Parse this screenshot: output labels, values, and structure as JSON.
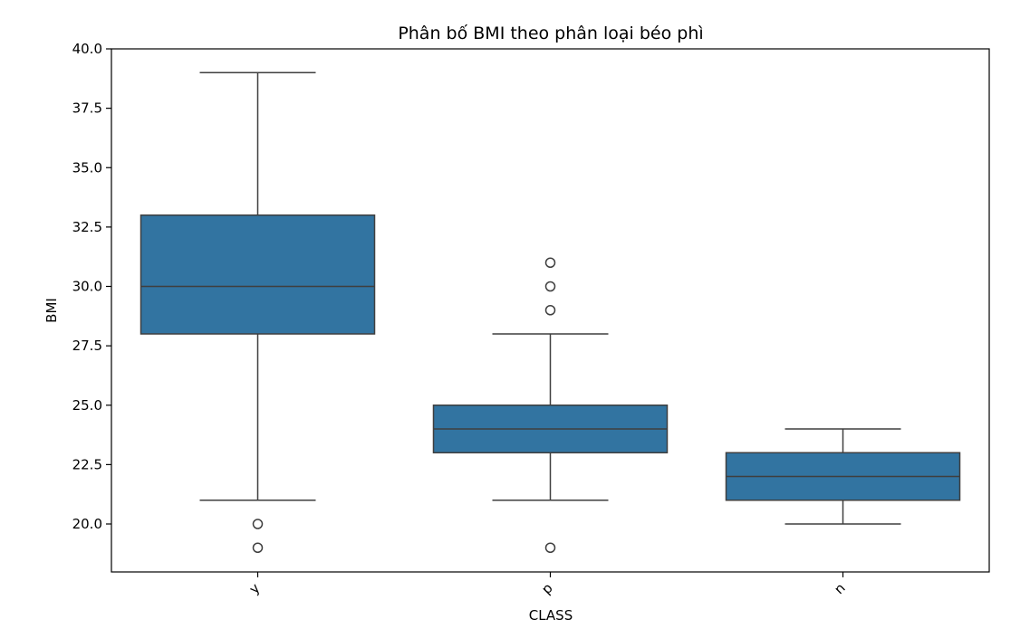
{
  "chart_data": {
    "type": "boxplot",
    "title": "Phân bố BMI theo phân loại béo phì",
    "xlabel": "CLASS",
    "ylabel": "BMI",
    "ylim": [
      18.0,
      40.0
    ],
    "yticks": [
      20.0,
      22.5,
      25.0,
      27.5,
      30.0,
      32.5,
      35.0,
      37.5,
      40.0
    ],
    "ytick_labels": [
      "20.0",
      "22.5",
      "25.0",
      "27.5",
      "30.0",
      "32.5",
      "35.0",
      "37.5",
      "40.0"
    ],
    "categories": [
      "y",
      "p",
      "n"
    ],
    "box_color": "#3274a1",
    "line_color": "#3f3f3f",
    "boxes": [
      {
        "category": "y",
        "whisker_low": 21,
        "q1": 28,
        "median": 30,
        "q3": 33,
        "whisker_high": 39,
        "outliers": [
          20,
          19
        ]
      },
      {
        "category": "p",
        "whisker_low": 21,
        "q1": 23,
        "median": 24,
        "q3": 25,
        "whisker_high": 28,
        "outliers": [
          29,
          30,
          31,
          19
        ]
      },
      {
        "category": "n",
        "whisker_low": 20,
        "q1": 21,
        "median": 22,
        "q3": 23,
        "whisker_high": 24,
        "outliers": []
      }
    ],
    "grid": false,
    "legend": "none"
  }
}
